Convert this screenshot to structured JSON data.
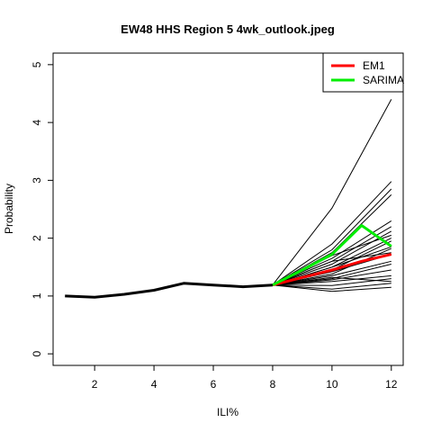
{
  "chart_data": {
    "type": "line",
    "title": "EW48 HHS Region 5 4wk_outlook.jpeg",
    "xlabel": "ILI%",
    "ylabel": "Probability",
    "xlim": [
      0.6,
      12.4
    ],
    "ylim": [
      -0.2,
      5.2
    ],
    "x_ticks": [
      2,
      4,
      6,
      8,
      10,
      12
    ],
    "y_ticks": [
      0,
      1,
      2,
      3,
      4,
      5
    ],
    "grid": false,
    "legend_position": "top-right",
    "legend": [
      {
        "label": "EM1",
        "color": "#ff0000"
      },
      {
        "label": "SARIMA",
        "color": "#00ee00"
      }
    ],
    "history": {
      "x": [
        1,
        2,
        3,
        4,
        5,
        6,
        7,
        8
      ],
      "y": [
        1.0,
        0.98,
        1.03,
        1.1,
        1.22,
        1.19,
        1.16,
        1.19
      ],
      "color": "#000000"
    },
    "ensemble": {
      "x": [
        8,
        10,
        12
      ],
      "color": "#000000",
      "lines": [
        [
          1.19,
          2.52,
          4.4
        ],
        [
          1.19,
          1.9,
          2.98
        ],
        [
          1.19,
          1.8,
          2.85
        ],
        [
          1.19,
          1.75,
          2.75
        ],
        [
          1.19,
          1.65,
          2.3
        ],
        [
          1.19,
          1.6,
          2.2
        ],
        [
          1.19,
          1.55,
          2.12
        ],
        [
          1.19,
          1.7,
          2.05
        ],
        [
          1.19,
          1.5,
          2.0
        ],
        [
          1.19,
          1.45,
          1.95
        ],
        [
          1.19,
          1.5,
          1.85
        ],
        [
          1.19,
          1.38,
          1.82
        ],
        [
          1.19,
          1.42,
          1.72
        ],
        [
          1.19,
          1.35,
          1.6
        ],
        [
          1.19,
          1.3,
          1.55
        ],
        [
          1.19,
          1.28,
          1.45
        ],
        [
          1.19,
          1.25,
          1.35
        ],
        [
          1.19,
          1.18,
          1.3
        ],
        [
          1.19,
          1.12,
          1.22
        ],
        [
          1.19,
          1.08,
          1.15
        ],
        [
          1.19,
          1.32,
          1.25
        ],
        [
          1.19,
          1.6,
          1.75
        ]
      ]
    },
    "series": [
      {
        "name": "EM1",
        "color": "#ff0000",
        "x": [
          8,
          9,
          10,
          11,
          12
        ],
        "y": [
          1.19,
          1.32,
          1.45,
          1.6,
          1.72
        ]
      },
      {
        "name": "SARIMA",
        "color": "#00ee00",
        "x": [
          8,
          9,
          10,
          11,
          12
        ],
        "y": [
          1.19,
          1.45,
          1.72,
          2.22,
          1.86
        ]
      }
    ]
  }
}
